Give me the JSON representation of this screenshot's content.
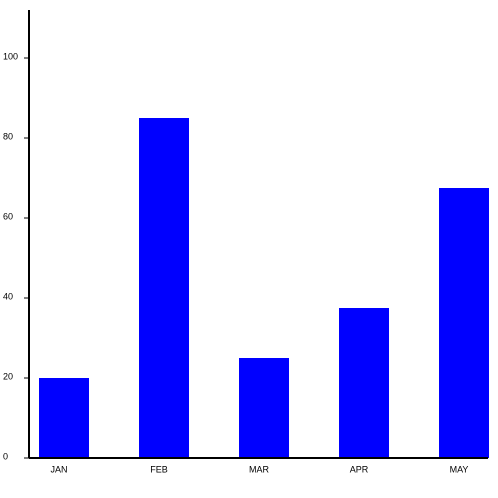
{
  "chart_data": {
    "type": "bar",
    "categories": [
      "JAN",
      "FEB",
      "MAR",
      "APR",
      "MAY"
    ],
    "values": [
      20,
      85,
      25,
      37.5,
      67.5
    ],
    "color": "#0000ff",
    "ylim": [
      0,
      112
    ],
    "yticks": [
      0,
      20,
      40,
      60,
      80,
      100
    ],
    "grid": false
  }
}
